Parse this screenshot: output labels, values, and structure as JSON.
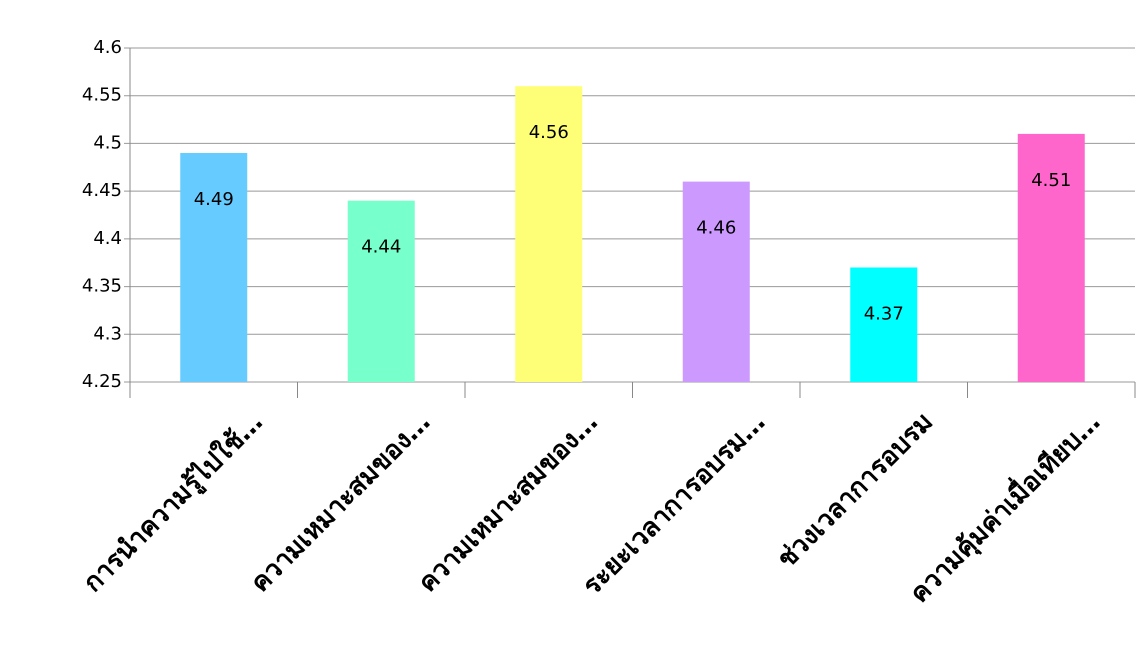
{
  "chart_data": {
    "type": "bar",
    "categories": [
      "การนำความรู้ไปใช้…",
      "ความเหมาะสมของ…",
      "ความเหมาะสมของ…",
      "ระยะเวลาการอบรม…",
      "ช่วงเวลาการอบรม",
      "ความคุ้มค่าเมื่อเทียบ…"
    ],
    "values": [
      4.49,
      4.44,
      4.56,
      4.46,
      4.37,
      4.51
    ],
    "colors": [
      "#66ccff",
      "#77ffcc",
      "#ffff77",
      "#cc99ff",
      "#00ffff",
      "#ff66cc"
    ],
    "ylim": [
      4.25,
      4.6
    ],
    "yticks": [
      4.25,
      4.3,
      4.35,
      4.4,
      4.45,
      4.5,
      4.55,
      4.6
    ],
    "grid": true
  }
}
